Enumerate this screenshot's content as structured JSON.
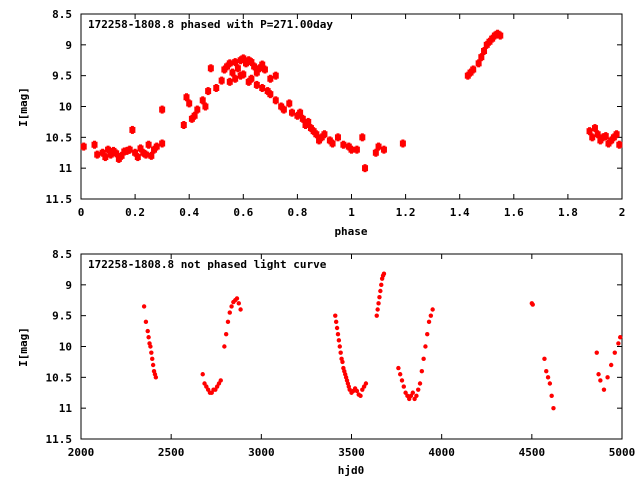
{
  "chart_data": [
    {
      "type": "scatter",
      "title": "172258-1808.8 phased with P=271.00day",
      "xlabel": "phase",
      "ylabel": "I[mag]",
      "xlim": [
        0,
        2
      ],
      "ylim": [
        8.5,
        11.5
      ],
      "y_inverted": true,
      "xticks": [
        "0",
        "0.2",
        "0.4",
        "0.6",
        "0.8",
        "1",
        "1.2",
        "1.4",
        "1.6",
        "1.8",
        "2"
      ],
      "yticks": [
        "8.5",
        "9",
        "9.5",
        "10",
        "10.5",
        "11",
        "11.5"
      ],
      "marker_color": "#ff0000",
      "series": [
        {
          "x": [
            0.01,
            0.05,
            0.06,
            0.08,
            0.1,
            0.12,
            0.13,
            0.15,
            0.16,
            0.18,
            0.2,
            0.22,
            0.24,
            0.25,
            0.26,
            0.27,
            0.28,
            0.3,
            0.14,
            0.19,
            0.21,
            0.23,
            0.11,
            0.09,
            0.17,
            0.3,
            0.38,
            0.39,
            0.4,
            0.41,
            0.42,
            0.43,
            0.45,
            0.46,
            0.47,
            0.48,
            0.5,
            0.52,
            0.53,
            0.54,
            0.55,
            0.56,
            0.57,
            0.58,
            0.59,
            0.6,
            0.61,
            0.62,
            0.63,
            0.64,
            0.65,
            0.66,
            0.67,
            0.68,
            0.7,
            0.72,
            0.55,
            0.57,
            0.59,
            0.6,
            0.62,
            0.63,
            0.65,
            0.67,
            0.69,
            0.7,
            0.72,
            0.74,
            0.75,
            0.77,
            0.78,
            0.8,
            0.81,
            0.82,
            0.83,
            0.84,
            0.85,
            0.86,
            0.87,
            0.88,
            0.89,
            0.9,
            0.92,
            0.93,
            0.95,
            0.97,
            0.99,
            1.0,
            1.02,
            1.04,
            1.05,
            1.09,
            1.1,
            1.12,
            1.19,
            1.43,
            1.44,
            1.45,
            1.47,
            1.48,
            1.49,
            1.5,
            1.51,
            1.52,
            1.53,
            1.54,
            1.55,
            1.88,
            1.89,
            1.9,
            1.91,
            1.92,
            1.93,
            1.94,
            1.95,
            1.96,
            1.97,
            1.98,
            1.99
          ],
          "y": [
            10.65,
            10.62,
            10.78,
            10.75,
            10.7,
            10.72,
            10.76,
            10.8,
            10.73,
            10.7,
            10.75,
            10.68,
            10.78,
            10.62,
            10.8,
            10.7,
            10.65,
            10.6,
            10.85,
            10.38,
            10.82,
            10.75,
            10.78,
            10.82,
            10.72,
            10.05,
            10.3,
            9.85,
            9.95,
            10.2,
            10.15,
            10.05,
            9.9,
            10.0,
            9.75,
            9.38,
            9.7,
            9.58,
            9.4,
            9.35,
            9.3,
            9.45,
            9.28,
            9.38,
            9.25,
            9.22,
            9.3,
            9.25,
            9.28,
            9.35,
            9.45,
            9.38,
            9.32,
            9.4,
            9.55,
            9.5,
            9.6,
            9.55,
            9.5,
            9.48,
            9.6,
            9.55,
            9.65,
            9.7,
            9.75,
            9.8,
            9.9,
            10.0,
            10.05,
            9.95,
            10.1,
            10.15,
            10.1,
            10.2,
            10.3,
            10.25,
            10.35,
            10.4,
            10.45,
            10.55,
            10.5,
            10.45,
            10.55,
            10.6,
            10.5,
            10.62,
            10.65,
            10.7,
            10.7,
            10.5,
            11.0,
            10.75,
            10.65,
            10.7,
            10.6,
            9.5,
            9.45,
            9.4,
            9.3,
            9.2,
            9.1,
            9.0,
            8.95,
            8.9,
            8.85,
            8.82,
            8.85,
            10.4,
            10.5,
            10.35,
            10.45,
            10.55,
            10.5,
            10.48,
            10.6,
            10.55,
            10.5,
            10.45,
            10.62
          ]
        }
      ]
    },
    {
      "type": "scatter",
      "title": "172258-1808.8 not phased light curve",
      "xlabel": "hjd0",
      "ylabel": "I[mag]",
      "xlim": [
        2000,
        5000
      ],
      "ylim": [
        8.5,
        11.5
      ],
      "y_inverted": true,
      "xticks": [
        "2000",
        "2500",
        "3000",
        "3500",
        "4000",
        "4500",
        "5000"
      ],
      "yticks": [
        "8.5",
        "9",
        "9.5",
        "10",
        "10.5",
        "11",
        "11.5"
      ],
      "marker_color": "#ff0000",
      "series": [
        {
          "x": [
            2350,
            2360,
            2370,
            2375,
            2380,
            2385,
            2390,
            2395,
            2400,
            2405,
            2410,
            2415,
            2675,
            2685,
            2695,
            2705,
            2715,
            2725,
            2735,
            2745,
            2755,
            2765,
            2775,
            2795,
            2805,
            2815,
            2825,
            2835,
            2845,
            2855,
            2865,
            2875,
            2885,
            3410,
            3415,
            3420,
            3425,
            3430,
            3435,
            3440,
            3445,
            3450,
            3455,
            3460,
            3465,
            3470,
            3475,
            3480,
            3485,
            3490,
            3500,
            3510,
            3520,
            3530,
            3540,
            3550,
            3560,
            3570,
            3580,
            3640,
            3645,
            3650,
            3655,
            3660,
            3665,
            3670,
            3675,
            3680,
            3760,
            3770,
            3780,
            3790,
            3800,
            3810,
            3820,
            3830,
            3840,
            3850,
            3860,
            3870,
            3880,
            3890,
            3900,
            3910,
            3920,
            3930,
            3940,
            3950,
            4500,
            4505,
            4570,
            4580,
            4590,
            4600,
            4610,
            4620,
            4860,
            4870,
            4880,
            4900,
            4920,
            4940,
            4960,
            4980,
            4990
          ],
          "y": [
            9.35,
            9.6,
            9.75,
            9.85,
            9.95,
            10.0,
            10.1,
            10.2,
            10.3,
            10.4,
            10.45,
            10.5,
            10.45,
            10.6,
            10.65,
            10.7,
            10.75,
            10.75,
            10.7,
            10.7,
            10.65,
            10.6,
            10.55,
            10.0,
            9.8,
            9.6,
            9.45,
            9.35,
            9.28,
            9.25,
            9.22,
            9.3,
            9.4,
            9.5,
            9.6,
            9.7,
            9.8,
            9.9,
            10.0,
            10.1,
            10.2,
            10.25,
            10.35,
            10.4,
            10.45,
            10.5,
            10.55,
            10.6,
            10.65,
            10.7,
            10.75,
            10.72,
            10.68,
            10.72,
            10.78,
            10.8,
            10.7,
            10.65,
            10.6,
            9.5,
            9.4,
            9.3,
            9.2,
            9.1,
            9.0,
            8.9,
            8.85,
            8.82,
            10.35,
            10.45,
            10.55,
            10.65,
            10.75,
            10.8,
            10.85,
            10.8,
            10.75,
            10.85,
            10.8,
            10.7,
            10.6,
            10.4,
            10.2,
            10.0,
            9.8,
            9.6,
            9.5,
            9.4,
            9.3,
            9.32,
            10.2,
            10.4,
            10.5,
            10.6,
            10.8,
            11.0,
            10.1,
            10.45,
            10.55,
            10.7,
            10.5,
            10.3,
            10.1,
            9.95,
            9.85
          ]
        }
      ]
    }
  ]
}
